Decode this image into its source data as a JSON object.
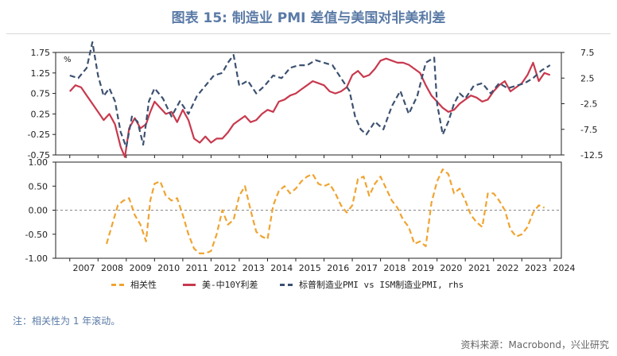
{
  "title": "图表 15: 制造业 PMI 差值与美国对非美利差",
  "note": "注：相关性为 1 年滚动。",
  "source": "资料来源：Macrobond，兴业研究",
  "colors": {
    "correlation": "#f0a431",
    "spread": "#c8394e",
    "pmi_diff": "#3c5170",
    "axis": "#222222",
    "grid": "#888888"
  },
  "chart_data": [
    {
      "type": "line",
      "left_unit": "%",
      "ylim_left": [
        -0.75,
        1.75
      ],
      "ylim_right": [
        -12.5,
        7.5
      ],
      "yticks_left": [
        "1.75",
        "1.25",
        "0.75",
        "0.25",
        "-0.25",
        "-0.75"
      ],
      "yticks_right": [
        "7.5",
        "2.5",
        "-2.5",
        "-7.5",
        "-12.5"
      ],
      "series": [
        {
          "name": "美-中10Y利差",
          "axis": "left",
          "x": [
            2007.0,
            2007.2,
            2007.4,
            2007.6,
            2007.8,
            2008.0,
            2008.2,
            2008.4,
            2008.6,
            2008.8,
            2008.95,
            2009.1,
            2009.3,
            2009.5,
            2009.7,
            2009.85,
            2010.0,
            2010.2,
            2010.4,
            2010.6,
            2010.8,
            2011.0,
            2011.2,
            2011.4,
            2011.6,
            2011.8,
            2012.0,
            2012.2,
            2012.4,
            2012.6,
            2012.8,
            2013.0,
            2013.2,
            2013.4,
            2013.6,
            2013.8,
            2014.0,
            2014.2,
            2014.4,
            2014.6,
            2014.8,
            2015.0,
            2015.2,
            2015.4,
            2015.6,
            2015.8,
            2016.0,
            2016.2,
            2016.4,
            2016.6,
            2016.8,
            2017.0,
            2017.2,
            2017.4,
            2017.6,
            2017.8,
            2018.0,
            2018.2,
            2018.4,
            2018.6,
            2018.8,
            2019.0,
            2019.2,
            2019.4,
            2019.6,
            2019.8,
            2020.0,
            2020.2,
            2020.4,
            2020.6,
            2020.8,
            2021.0,
            2021.2,
            2021.4,
            2021.6,
            2021.8,
            2022.0,
            2022.2,
            2022.4,
            2022.6,
            2022.8,
            2023.0,
            2023.2,
            2023.4,
            2023.6,
            2023.8,
            2024.0
          ],
          "values": [
            0.8,
            0.95,
            0.9,
            0.7,
            0.5,
            0.3,
            0.1,
            0.25,
            0.0,
            -0.55,
            -0.8,
            -0.1,
            0.15,
            -0.1,
            0.0,
            0.3,
            0.55,
            0.4,
            0.25,
            0.3,
            0.05,
            0.35,
            0.1,
            -0.35,
            -0.45,
            -0.3,
            -0.45,
            -0.35,
            -0.35,
            -0.2,
            0.0,
            0.1,
            0.2,
            0.05,
            0.1,
            0.25,
            0.35,
            0.3,
            0.55,
            0.6,
            0.7,
            0.75,
            0.85,
            0.95,
            1.05,
            1.0,
            0.95,
            0.8,
            0.75,
            0.8,
            0.9,
            1.2,
            1.3,
            1.15,
            1.2,
            1.35,
            1.55,
            1.6,
            1.55,
            1.5,
            1.5,
            1.45,
            1.35,
            1.25,
            0.95,
            0.7,
            0.55,
            0.4,
            0.3,
            0.35,
            0.5,
            0.6,
            0.7,
            0.65,
            0.55,
            0.6,
            0.8,
            0.95,
            1.05,
            0.8,
            0.9,
            1.0,
            1.2,
            1.5,
            1.05,
            1.25,
            1.2
          ]
        },
        {
          "name": "标普制造业PMI vs ISM制造业PMI, rhs",
          "axis": "right",
          "x": [
            2007.0,
            2007.3,
            2007.6,
            2007.8,
            2008.0,
            2008.2,
            2008.4,
            2008.6,
            2008.8,
            2009.0,
            2009.2,
            2009.4,
            2009.6,
            2009.8,
            2010.0,
            2010.3,
            2010.6,
            2010.9,
            2011.2,
            2011.5,
            2011.8,
            2012.1,
            2012.4,
            2012.6,
            2012.8,
            2013.0,
            2013.3,
            2013.6,
            2013.9,
            2014.2,
            2014.5,
            2014.8,
            2015.1,
            2015.4,
            2015.7,
            2016.0,
            2016.3,
            2016.6,
            2016.9,
            2017.1,
            2017.3,
            2017.5,
            2017.8,
            2018.1,
            2018.4,
            2018.7,
            2019.0,
            2019.3,
            2019.6,
            2019.9,
            2020.0,
            2020.2,
            2020.4,
            2020.6,
            2020.8,
            2021.0,
            2021.3,
            2021.6,
            2021.9,
            2022.2,
            2022.5,
            2022.8,
            2023.1,
            2023.4,
            2023.7,
            2024.0
          ],
          "values": [
            3.0,
            2.5,
            4.5,
            9.5,
            3.0,
            -1.0,
            0.5,
            -2.0,
            -8.0,
            -11.0,
            -5.0,
            -6.0,
            -10.5,
            -2.0,
            0.5,
            -1.5,
            -5.0,
            -2.0,
            -4.5,
            -1.0,
            1.0,
            3.0,
            3.5,
            5.5,
            7.0,
            1.0,
            2.0,
            -0.5,
            1.0,
            3.0,
            2.5,
            4.5,
            5.0,
            5.0,
            6.0,
            5.5,
            5.0,
            2.5,
            0.0,
            -5.0,
            -7.5,
            -8.5,
            -6.0,
            -7.5,
            -3.0,
            0.0,
            -4.5,
            -1.0,
            5.5,
            6.5,
            -2.5,
            -8.5,
            -6.0,
            -2.5,
            -0.5,
            -1.5,
            1.0,
            1.5,
            -0.5,
            1.5,
            0.5,
            1.0,
            1.5,
            2.5,
            4.0,
            5.0
          ]
        }
      ]
    },
    {
      "type": "line",
      "ylim": [
        -1.0,
        1.0
      ],
      "yticks": [
        "1.00",
        "0.50",
        "0.00",
        "-0.50",
        "-1.00"
      ],
      "xticks": [
        "2007",
        "2008",
        "2009",
        "2010",
        "2011",
        "2012",
        "2013",
        "2014",
        "2015",
        "2016",
        "2017",
        "2018",
        "2019",
        "2020",
        "2021",
        "2022",
        "2023",
        "2024"
      ],
      "series": [
        {
          "name": "相关性",
          "x": [
            2008.3,
            2008.5,
            2008.7,
            2008.9,
            2009.1,
            2009.3,
            2009.5,
            2009.7,
            2009.85,
            2010.0,
            2010.2,
            2010.4,
            2010.6,
            2010.8,
            2011.0,
            2011.2,
            2011.4,
            2011.6,
            2011.8,
            2012.0,
            2012.2,
            2012.4,
            2012.6,
            2012.8,
            2013.0,
            2013.2,
            2013.4,
            2013.6,
            2013.8,
            2014.0,
            2014.2,
            2014.4,
            2014.6,
            2014.8,
            2015.0,
            2015.2,
            2015.4,
            2015.6,
            2015.8,
            2016.0,
            2016.2,
            2016.4,
            2016.6,
            2016.8,
            2017.0,
            2017.2,
            2017.4,
            2017.6,
            2017.8,
            2018.0,
            2018.2,
            2018.4,
            2018.6,
            2018.8,
            2019.0,
            2019.2,
            2019.4,
            2019.6,
            2019.8,
            2020.0,
            2020.2,
            2020.4,
            2020.6,
            2020.8,
            2021.0,
            2021.2,
            2021.4,
            2021.6,
            2021.8,
            2022.0,
            2022.2,
            2022.4,
            2022.6,
            2022.8,
            2023.0,
            2023.2,
            2023.4,
            2023.6,
            2023.8
          ],
          "values": [
            -0.7,
            -0.3,
            0.1,
            0.2,
            0.25,
            -0.1,
            -0.3,
            -0.65,
            0.2,
            0.55,
            0.6,
            0.3,
            0.2,
            0.25,
            -0.1,
            -0.5,
            -0.8,
            -0.9,
            -0.9,
            -0.85,
            -0.5,
            0.0,
            -0.3,
            -0.2,
            0.3,
            0.5,
            0.0,
            -0.45,
            -0.55,
            -0.6,
            0.1,
            0.4,
            0.5,
            0.35,
            0.45,
            0.6,
            0.7,
            0.75,
            0.55,
            0.5,
            0.55,
            0.35,
            0.1,
            -0.05,
            0.1,
            0.65,
            0.7,
            0.3,
            0.55,
            0.7,
            0.45,
            0.2,
            0.05,
            -0.2,
            -0.35,
            -0.7,
            -0.65,
            -0.75,
            0.15,
            0.6,
            0.85,
            0.75,
            0.35,
            0.45,
            0.2,
            -0.1,
            -0.25,
            -0.35,
            0.35,
            0.35,
            0.2,
            0.0,
            -0.4,
            -0.55,
            -0.5,
            -0.35,
            -0.05,
            0.1,
            0.05
          ]
        }
      ]
    }
  ]
}
